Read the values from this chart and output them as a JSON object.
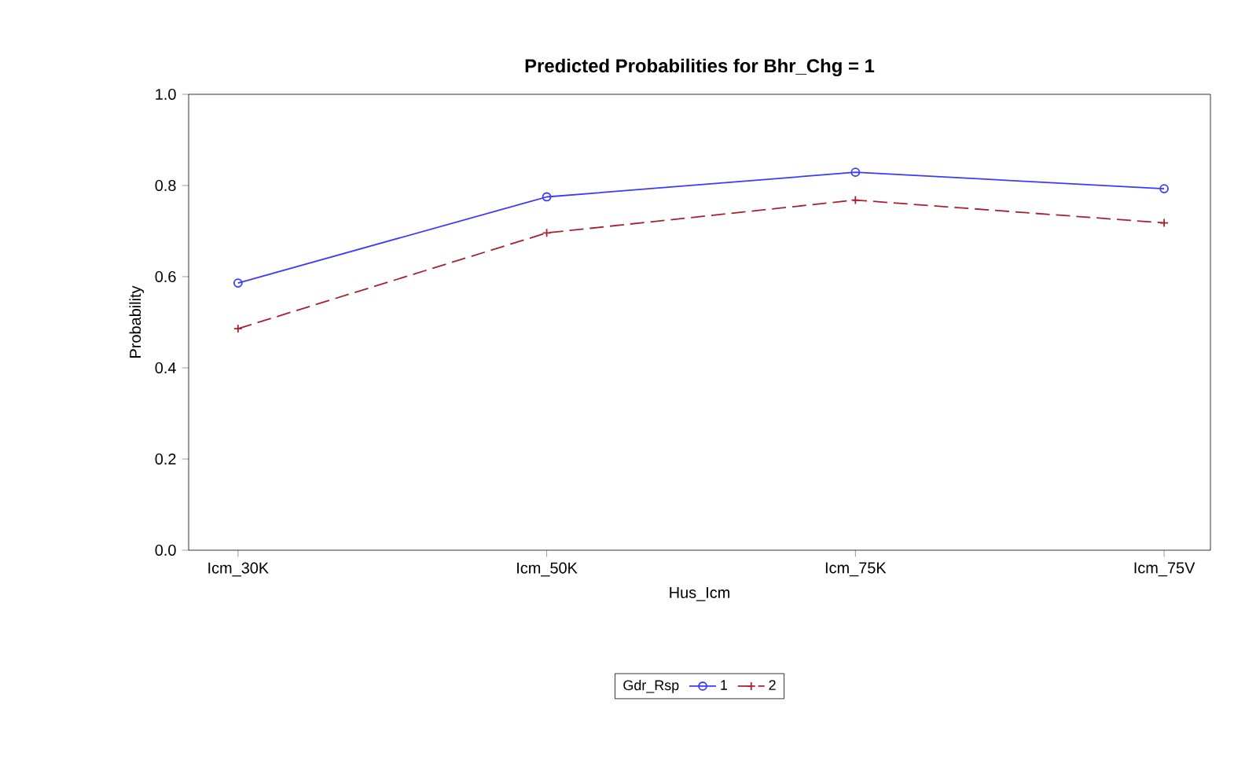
{
  "chart_data": {
    "type": "line",
    "title": "Predicted Probabilities for Bhr_Chg = 1",
    "xlabel": "Hus_Icm",
    "ylabel": "Probability",
    "legend_title": "Gdr_Rsp",
    "categories": [
      "Icm_30K",
      "Icm_50K",
      "Icm_75K",
      "Icm_75V"
    ],
    "series": [
      {
        "name": "1",
        "color": "#3a3aff",
        "values": [
          0.586,
          0.775,
          0.829,
          0.793
        ],
        "marker": "circle",
        "line_style": "solid"
      },
      {
        "name": "2",
        "color": "#a8202e",
        "values": [
          0.486,
          0.696,
          0.768,
          0.718
        ],
        "marker": "cross",
        "line_style": "dashed"
      }
    ],
    "ylim": [
      0,
      1.0
    ],
    "yticks": [
      {
        "value": 0,
        "label": "0.0"
      },
      {
        "value": 0.2,
        "label": "0.2"
      },
      {
        "value": 0.4,
        "label": "0.4"
      },
      {
        "value": 0.6,
        "label": "0.6"
      },
      {
        "value": 0.8,
        "label": "0.8"
      },
      {
        "value": 1.0,
        "label": "1.0"
      }
    ],
    "grid": false,
    "legend": "bottom"
  }
}
